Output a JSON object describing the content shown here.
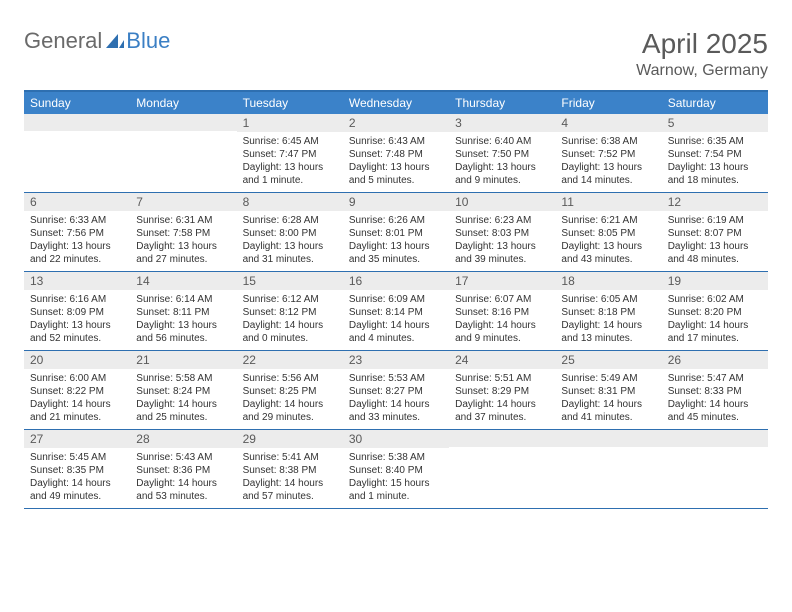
{
  "brand": {
    "part1": "General",
    "part2": "Blue"
  },
  "title": "April 2025",
  "location": "Warnow, Germany",
  "colors": {
    "header_bar": "#3b82c9",
    "border": "#2e6fb0",
    "daynum_bg": "#ececec",
    "text_muted": "#5a5a5a",
    "logo_gray": "#6a6a6a",
    "logo_blue": "#3b7fc4"
  },
  "dow": [
    "Sunday",
    "Monday",
    "Tuesday",
    "Wednesday",
    "Thursday",
    "Friday",
    "Saturday"
  ],
  "weeks": [
    [
      {
        "n": "",
        "sr": "",
        "ss": "",
        "dl1": "",
        "dl2": ""
      },
      {
        "n": "",
        "sr": "",
        "ss": "",
        "dl1": "",
        "dl2": ""
      },
      {
        "n": "1",
        "sr": "Sunrise: 6:45 AM",
        "ss": "Sunset: 7:47 PM",
        "dl1": "Daylight: 13 hours",
        "dl2": "and 1 minute."
      },
      {
        "n": "2",
        "sr": "Sunrise: 6:43 AM",
        "ss": "Sunset: 7:48 PM",
        "dl1": "Daylight: 13 hours",
        "dl2": "and 5 minutes."
      },
      {
        "n": "3",
        "sr": "Sunrise: 6:40 AM",
        "ss": "Sunset: 7:50 PM",
        "dl1": "Daylight: 13 hours",
        "dl2": "and 9 minutes."
      },
      {
        "n": "4",
        "sr": "Sunrise: 6:38 AM",
        "ss": "Sunset: 7:52 PM",
        "dl1": "Daylight: 13 hours",
        "dl2": "and 14 minutes."
      },
      {
        "n": "5",
        "sr": "Sunrise: 6:35 AM",
        "ss": "Sunset: 7:54 PM",
        "dl1": "Daylight: 13 hours",
        "dl2": "and 18 minutes."
      }
    ],
    [
      {
        "n": "6",
        "sr": "Sunrise: 6:33 AM",
        "ss": "Sunset: 7:56 PM",
        "dl1": "Daylight: 13 hours",
        "dl2": "and 22 minutes."
      },
      {
        "n": "7",
        "sr": "Sunrise: 6:31 AM",
        "ss": "Sunset: 7:58 PM",
        "dl1": "Daylight: 13 hours",
        "dl2": "and 27 minutes."
      },
      {
        "n": "8",
        "sr": "Sunrise: 6:28 AM",
        "ss": "Sunset: 8:00 PM",
        "dl1": "Daylight: 13 hours",
        "dl2": "and 31 minutes."
      },
      {
        "n": "9",
        "sr": "Sunrise: 6:26 AM",
        "ss": "Sunset: 8:01 PM",
        "dl1": "Daylight: 13 hours",
        "dl2": "and 35 minutes."
      },
      {
        "n": "10",
        "sr": "Sunrise: 6:23 AM",
        "ss": "Sunset: 8:03 PM",
        "dl1": "Daylight: 13 hours",
        "dl2": "and 39 minutes."
      },
      {
        "n": "11",
        "sr": "Sunrise: 6:21 AM",
        "ss": "Sunset: 8:05 PM",
        "dl1": "Daylight: 13 hours",
        "dl2": "and 43 minutes."
      },
      {
        "n": "12",
        "sr": "Sunrise: 6:19 AM",
        "ss": "Sunset: 8:07 PM",
        "dl1": "Daylight: 13 hours",
        "dl2": "and 48 minutes."
      }
    ],
    [
      {
        "n": "13",
        "sr": "Sunrise: 6:16 AM",
        "ss": "Sunset: 8:09 PM",
        "dl1": "Daylight: 13 hours",
        "dl2": "and 52 minutes."
      },
      {
        "n": "14",
        "sr": "Sunrise: 6:14 AM",
        "ss": "Sunset: 8:11 PM",
        "dl1": "Daylight: 13 hours",
        "dl2": "and 56 minutes."
      },
      {
        "n": "15",
        "sr": "Sunrise: 6:12 AM",
        "ss": "Sunset: 8:12 PM",
        "dl1": "Daylight: 14 hours",
        "dl2": "and 0 minutes."
      },
      {
        "n": "16",
        "sr": "Sunrise: 6:09 AM",
        "ss": "Sunset: 8:14 PM",
        "dl1": "Daylight: 14 hours",
        "dl2": "and 4 minutes."
      },
      {
        "n": "17",
        "sr": "Sunrise: 6:07 AM",
        "ss": "Sunset: 8:16 PM",
        "dl1": "Daylight: 14 hours",
        "dl2": "and 9 minutes."
      },
      {
        "n": "18",
        "sr": "Sunrise: 6:05 AM",
        "ss": "Sunset: 8:18 PM",
        "dl1": "Daylight: 14 hours",
        "dl2": "and 13 minutes."
      },
      {
        "n": "19",
        "sr": "Sunrise: 6:02 AM",
        "ss": "Sunset: 8:20 PM",
        "dl1": "Daylight: 14 hours",
        "dl2": "and 17 minutes."
      }
    ],
    [
      {
        "n": "20",
        "sr": "Sunrise: 6:00 AM",
        "ss": "Sunset: 8:22 PM",
        "dl1": "Daylight: 14 hours",
        "dl2": "and 21 minutes."
      },
      {
        "n": "21",
        "sr": "Sunrise: 5:58 AM",
        "ss": "Sunset: 8:24 PM",
        "dl1": "Daylight: 14 hours",
        "dl2": "and 25 minutes."
      },
      {
        "n": "22",
        "sr": "Sunrise: 5:56 AM",
        "ss": "Sunset: 8:25 PM",
        "dl1": "Daylight: 14 hours",
        "dl2": "and 29 minutes."
      },
      {
        "n": "23",
        "sr": "Sunrise: 5:53 AM",
        "ss": "Sunset: 8:27 PM",
        "dl1": "Daylight: 14 hours",
        "dl2": "and 33 minutes."
      },
      {
        "n": "24",
        "sr": "Sunrise: 5:51 AM",
        "ss": "Sunset: 8:29 PM",
        "dl1": "Daylight: 14 hours",
        "dl2": "and 37 minutes."
      },
      {
        "n": "25",
        "sr": "Sunrise: 5:49 AM",
        "ss": "Sunset: 8:31 PM",
        "dl1": "Daylight: 14 hours",
        "dl2": "and 41 minutes."
      },
      {
        "n": "26",
        "sr": "Sunrise: 5:47 AM",
        "ss": "Sunset: 8:33 PM",
        "dl1": "Daylight: 14 hours",
        "dl2": "and 45 minutes."
      }
    ],
    [
      {
        "n": "27",
        "sr": "Sunrise: 5:45 AM",
        "ss": "Sunset: 8:35 PM",
        "dl1": "Daylight: 14 hours",
        "dl2": "and 49 minutes."
      },
      {
        "n": "28",
        "sr": "Sunrise: 5:43 AM",
        "ss": "Sunset: 8:36 PM",
        "dl1": "Daylight: 14 hours",
        "dl2": "and 53 minutes."
      },
      {
        "n": "29",
        "sr": "Sunrise: 5:41 AM",
        "ss": "Sunset: 8:38 PM",
        "dl1": "Daylight: 14 hours",
        "dl2": "and 57 minutes."
      },
      {
        "n": "30",
        "sr": "Sunrise: 5:38 AM",
        "ss": "Sunset: 8:40 PM",
        "dl1": "Daylight: 15 hours",
        "dl2": "and 1 minute."
      },
      {
        "n": "",
        "sr": "",
        "ss": "",
        "dl1": "",
        "dl2": ""
      },
      {
        "n": "",
        "sr": "",
        "ss": "",
        "dl1": "",
        "dl2": ""
      },
      {
        "n": "",
        "sr": "",
        "ss": "",
        "dl1": "",
        "dl2": ""
      }
    ]
  ]
}
